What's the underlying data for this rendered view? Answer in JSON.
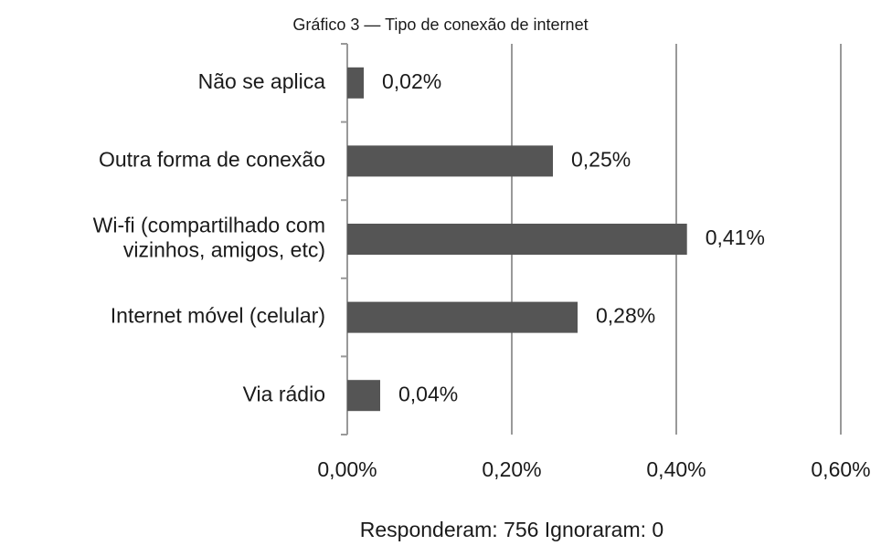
{
  "chart_data": {
    "type": "bar",
    "orientation": "horizontal",
    "title": "Gráfico 3 — Tipo de conexão de internet",
    "categories": [
      "Não se aplica",
      "Outra forma de conexão",
      "Wi-fi (compartilhado com\nvizinhos, amigos, etc)",
      "Internet móvel (celular)",
      "Via rádio"
    ],
    "values": [
      0.02,
      0.25,
      0.413,
      0.28,
      0.04
    ],
    "value_labels": [
      "0,02%",
      "0,25%",
      "0,41%",
      "0,28%",
      "0,04%"
    ],
    "color": "#555555",
    "xlim": [
      0,
      0.6
    ],
    "xticks": [
      {
        "value": 0,
        "label": "0,00%"
      },
      {
        "value": 0.2,
        "label": "0,20%"
      },
      {
        "value": 0.4,
        "label": "0,40%"
      },
      {
        "value": 0.6,
        "label": "0,60%"
      }
    ],
    "grid": true,
    "footer": "Responderam: 756 Ignoraram: 0"
  }
}
